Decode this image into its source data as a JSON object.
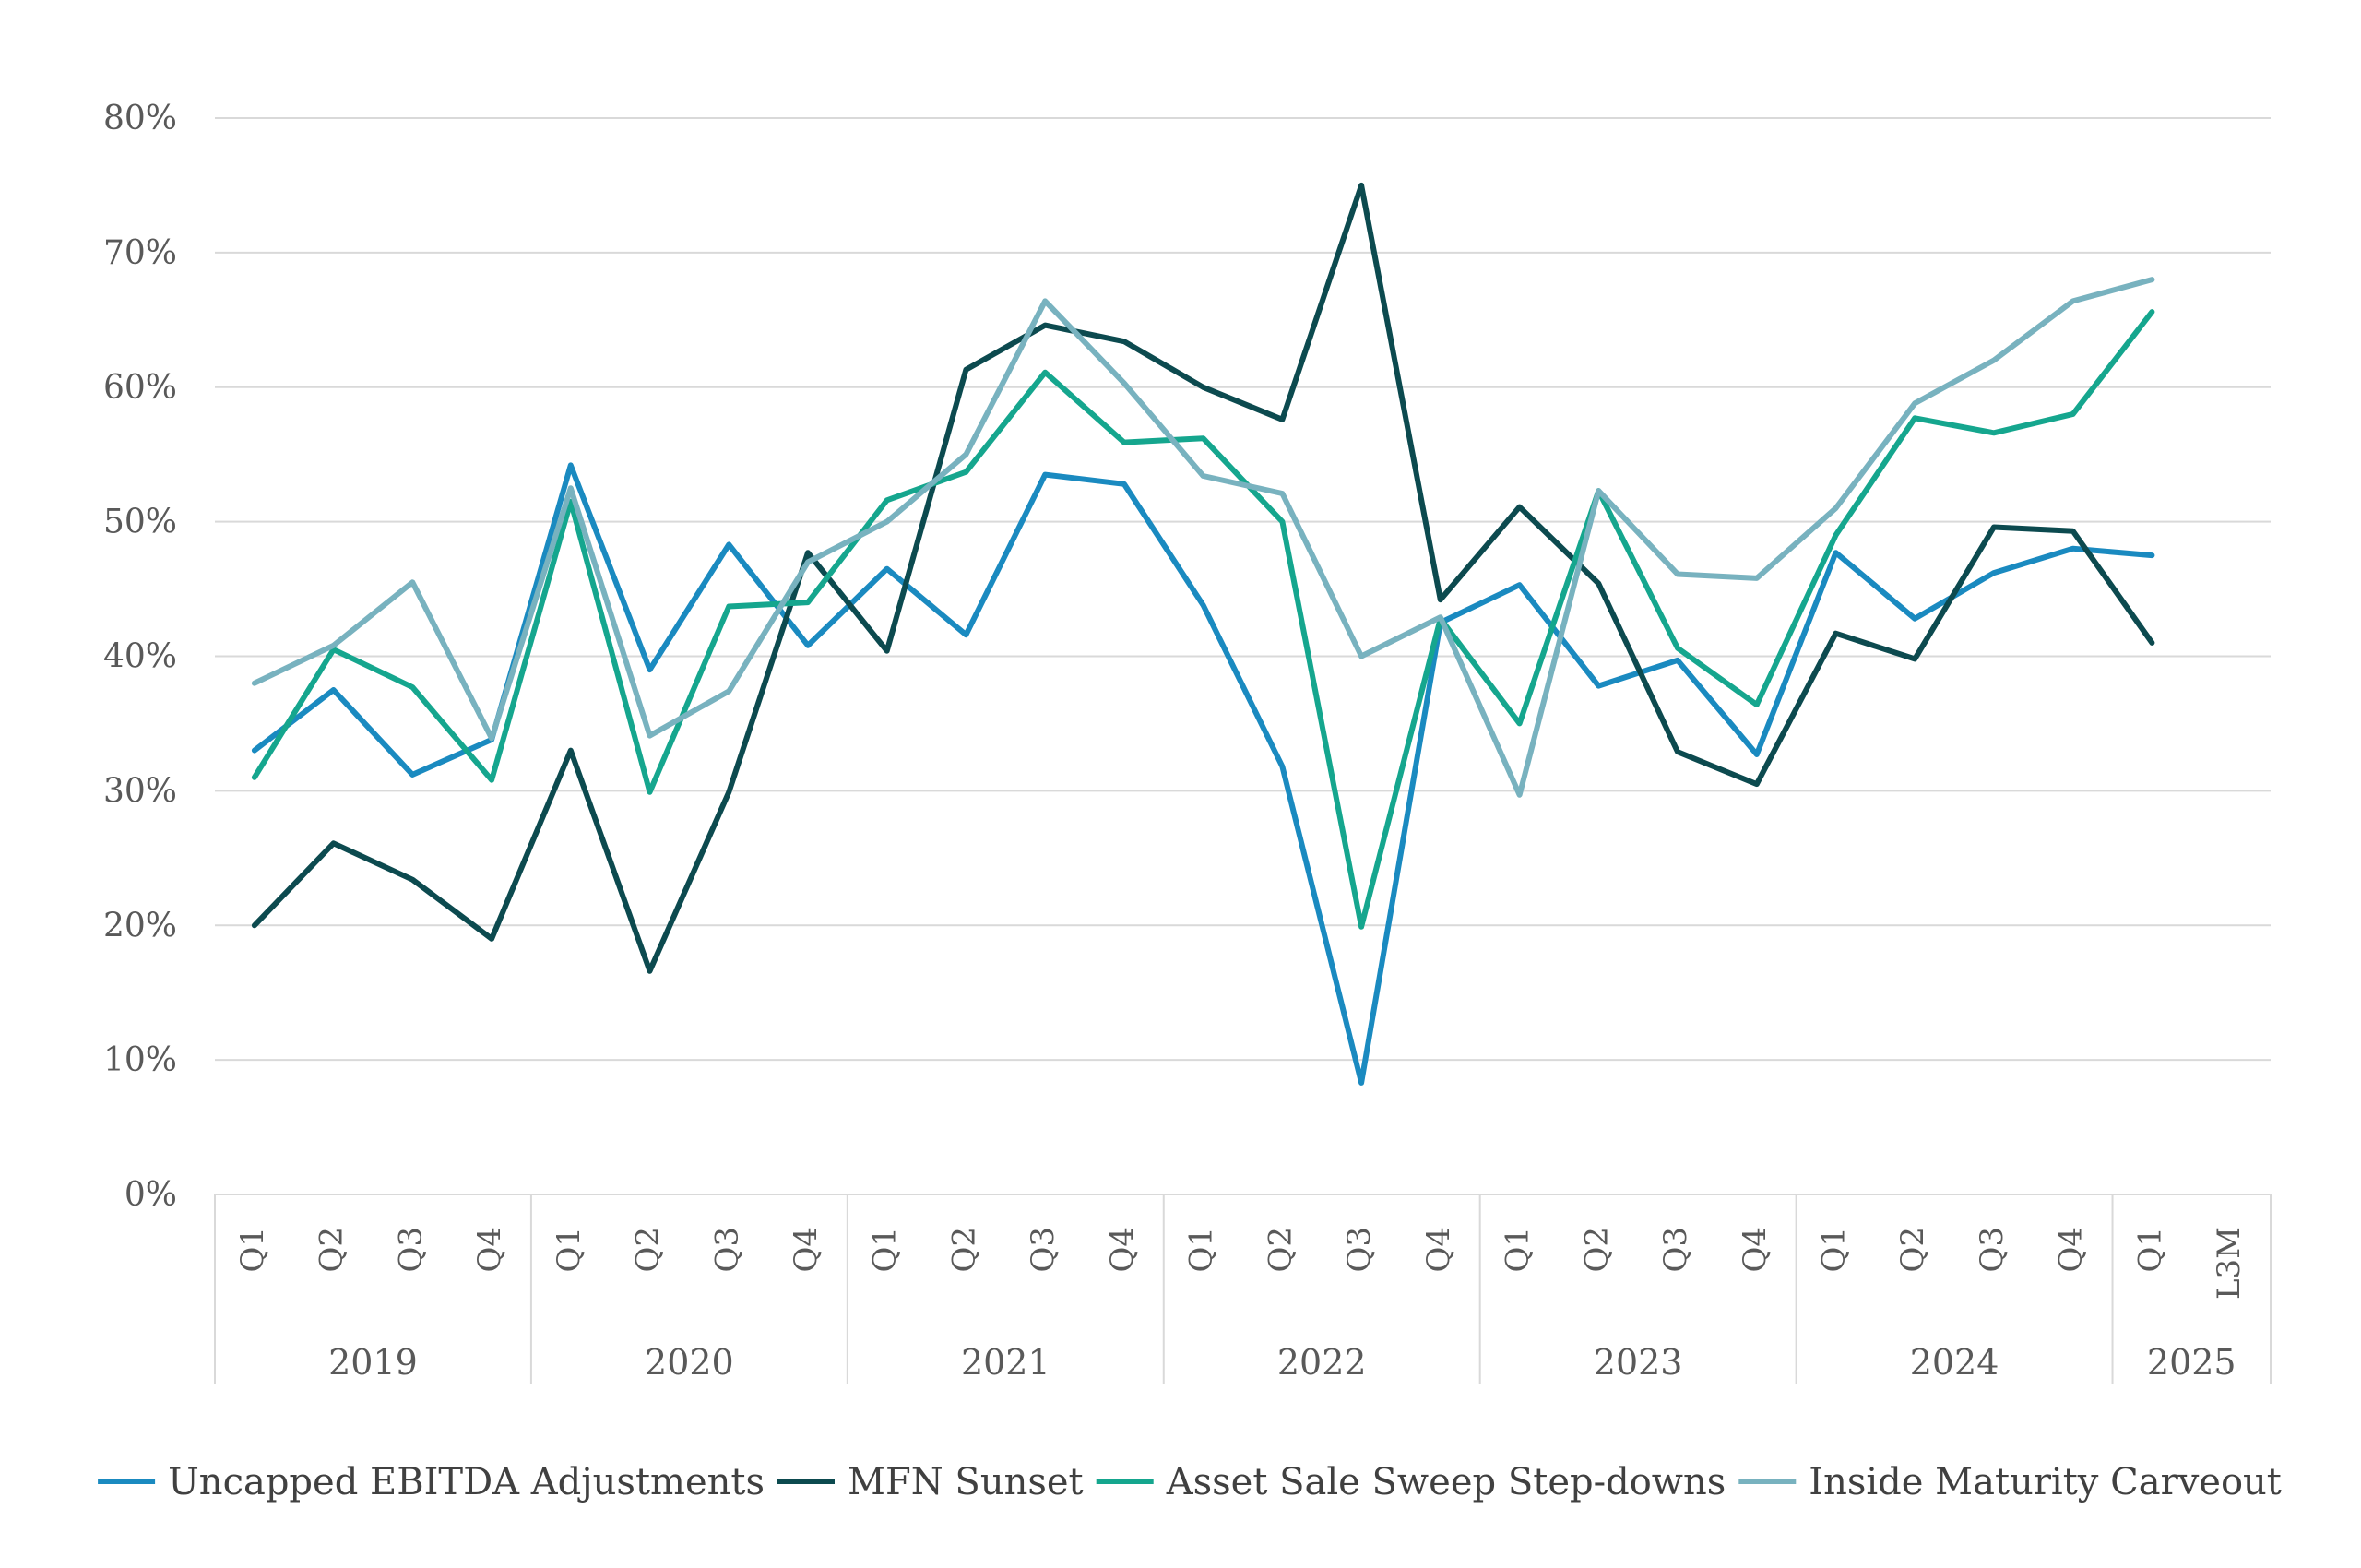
{
  "chart_data": {
    "type": "line",
    "title": "",
    "xlabel": "",
    "ylabel": "",
    "ylim": [
      0,
      80
    ],
    "y_ticks": [
      "0%",
      "10%",
      "20%",
      "30%",
      "40%",
      "50%",
      "60%",
      "70%",
      "80%"
    ],
    "grid": true,
    "legend_position": "bottom",
    "categories": [
      "Q1",
      "Q2",
      "Q3",
      "Q4",
      "Q1",
      "Q2",
      "Q3",
      "Q4",
      "Q1",
      "Q2",
      "Q3",
      "Q4",
      "Q1",
      "Q2",
      "Q3",
      "Q4",
      "Q1",
      "Q2",
      "Q3",
      "Q4",
      "Q1",
      "Q2",
      "Q3",
      "Q4",
      "Q1",
      "L3M"
    ],
    "year_groups": [
      {
        "label": "2019",
        "count": 4
      },
      {
        "label": "2020",
        "count": 4
      },
      {
        "label": "2021",
        "count": 4
      },
      {
        "label": "2022",
        "count": 4
      },
      {
        "label": "2023",
        "count": 4
      },
      {
        "label": "2024",
        "count": 4
      },
      {
        "label": "2025",
        "count": 2
      }
    ],
    "series": [
      {
        "name": "Uncapped EBITDA Adjustments",
        "color": "#1a8ac0",
        "values": [
          33.0,
          37.5,
          31.2,
          33.8,
          54.2,
          39.0,
          48.3,
          40.8,
          46.5,
          41.6,
          53.5,
          52.8,
          43.8,
          31.8,
          8.3,
          42.5,
          45.3,
          37.8,
          39.7,
          32.7,
          47.7,
          42.8,
          46.2,
          48.0,
          47.5,
          null
        ]
      },
      {
        "name": "MFN Sunset",
        "color": "#0c4a4f",
        "values": [
          20.0,
          26.1,
          23.4,
          19.0,
          33.0,
          16.6,
          29.9,
          47.7,
          40.4,
          61.3,
          64.6,
          63.4,
          60.0,
          57.6,
          75.0,
          44.2,
          51.1,
          45.4,
          32.9,
          30.5,
          41.7,
          39.8,
          49.6,
          49.3,
          41.0,
          null
        ]
      },
      {
        "name": "Asset Sale Sweep Step-downs",
        "color": "#15a68e",
        "values": [
          31.0,
          40.5,
          37.7,
          30.8,
          51.5,
          29.9,
          43.7,
          44.0,
          51.6,
          53.7,
          61.1,
          55.9,
          56.2,
          50.0,
          19.9,
          42.8,
          35.0,
          52.3,
          40.6,
          36.4,
          49.0,
          57.7,
          56.6,
          58.0,
          65.6,
          null
        ]
      },
      {
        "name": "Inside Maturity Carveout",
        "color": "#78b2bf",
        "values": [
          38.0,
          40.8,
          45.5,
          33.9,
          52.5,
          34.1,
          37.4,
          47.0,
          50.0,
          55.0,
          66.4,
          60.3,
          53.4,
          52.1,
          40.0,
          42.9,
          29.7,
          52.3,
          46.1,
          45.8,
          51.0,
          58.8,
          62.0,
          66.4,
          68.0,
          null
        ]
      }
    ]
  }
}
